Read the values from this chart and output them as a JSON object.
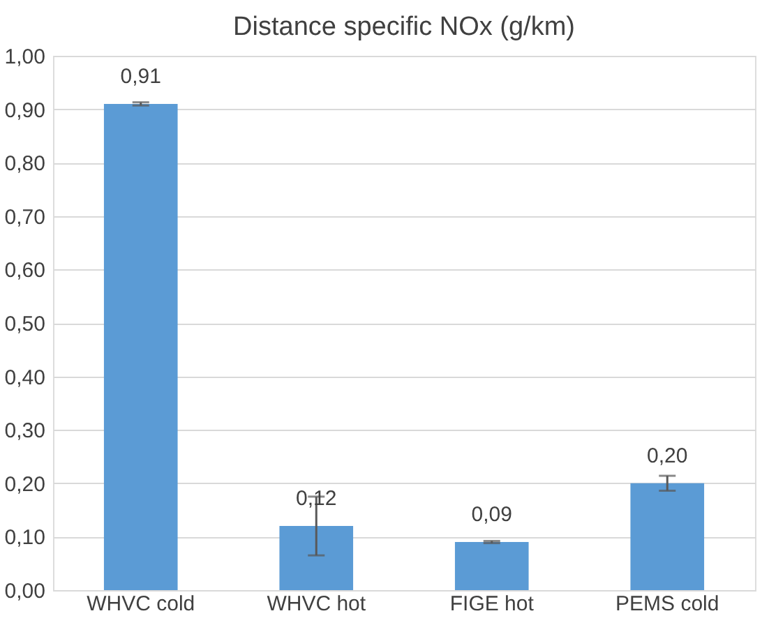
{
  "chart_data": {
    "type": "bar",
    "title": "Distance specific NOx (g/km)",
    "categories": [
      "WHVC cold",
      "WHVC hot",
      "FIGE hot",
      "PEMS cold"
    ],
    "values": [
      0.91,
      0.12,
      0.09,
      0.2
    ],
    "errors": [
      0.003,
      0.055,
      0.002,
      0.014
    ],
    "color": "#5b9bd5",
    "value_labels": [
      "0,91",
      "0,12",
      "0,09",
      "0,20"
    ],
    "ylim": [
      0,
      1.0
    ],
    "yticks": [
      {
        "value": 0,
        "label": "0,00"
      },
      {
        "value": 0.1,
        "label": "0,10"
      },
      {
        "value": 0.2,
        "label": "0,20"
      },
      {
        "value": 0.3,
        "label": "0,30"
      },
      {
        "value": 0.4,
        "label": "0,40"
      },
      {
        "value": 0.5,
        "label": "0,50"
      },
      {
        "value": 0.6,
        "label": "0,60"
      },
      {
        "value": 0.7,
        "label": "0,70"
      },
      {
        "value": 0.8,
        "label": "0,80"
      },
      {
        "value": 0.9,
        "label": "0,90"
      },
      {
        "value": 1.0,
        "label": "1,00"
      }
    ],
    "grid": "y"
  }
}
